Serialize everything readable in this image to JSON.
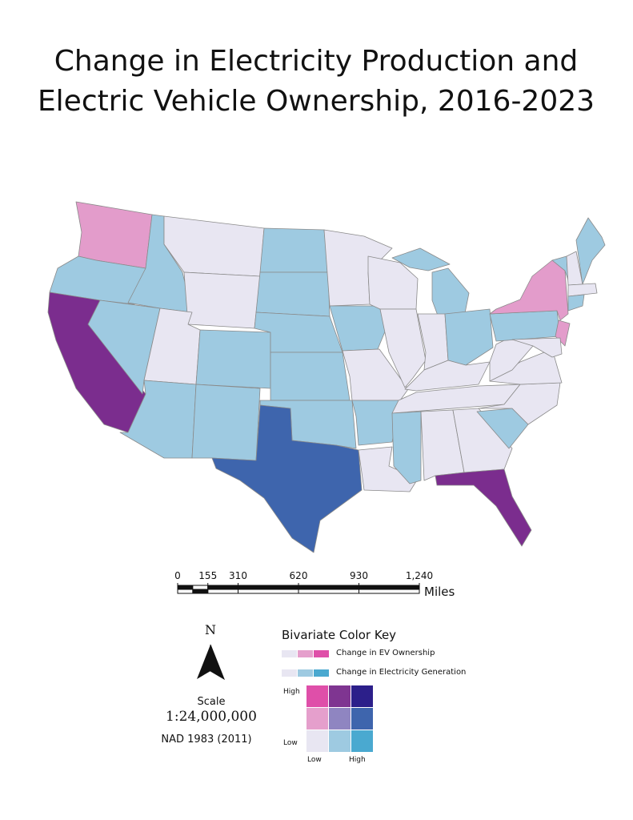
{
  "title": {
    "lines": [
      "Change in Electricity Production and",
      "Electric Vehicle Ownership, 2016-2023"
    ]
  },
  "scale_bar": {
    "ticks": [
      0,
      155,
      310,
      620,
      930,
      {
        "value": 1240,
        "label": "1,240"
      }
    ],
    "unit": "Miles"
  },
  "north_arrow": "N",
  "scale": {
    "label": "Scale",
    "ratio": "1:24,000,000"
  },
  "datum": "NAD 1983 (2011)",
  "legend": {
    "title": "Bivariate Color Key",
    "ev_label": "Change in EV Ownership",
    "electricity_label": "Change in Electricity Generation",
    "y_high": "High",
    "y_low": "Low",
    "x_low": "Low",
    "x_high": "High"
  }
}
